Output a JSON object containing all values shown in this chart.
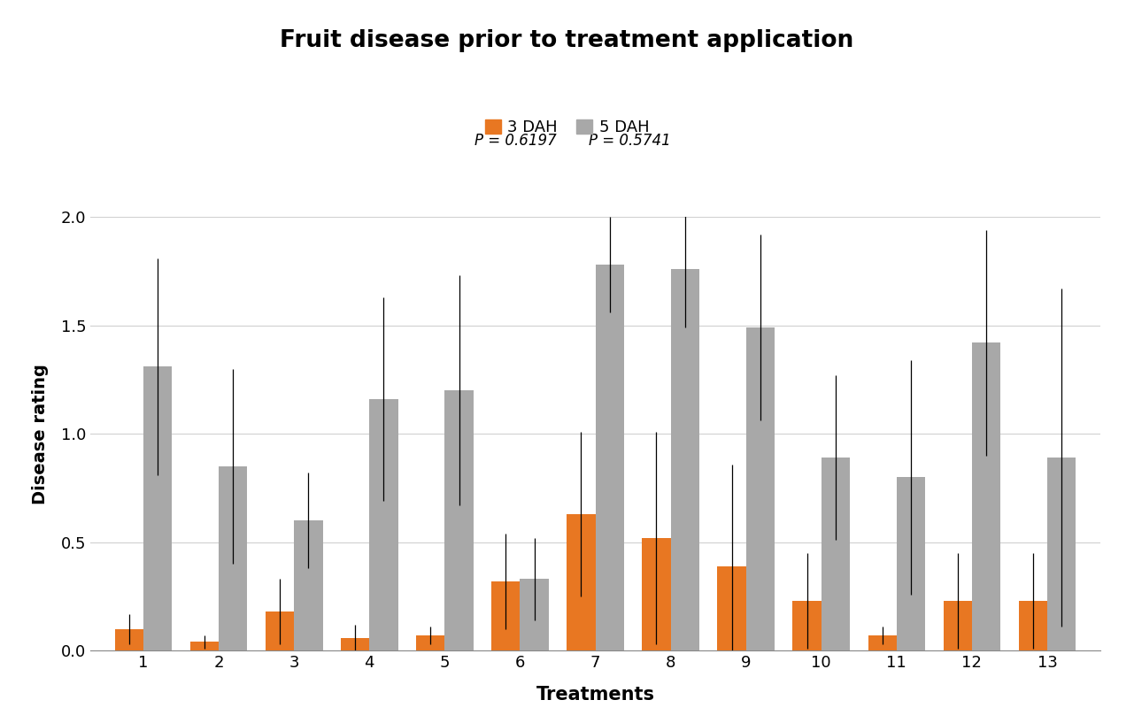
{
  "title": "Fruit disease prior to treatment application",
  "xlabel": "Treatments",
  "ylabel": "Disease rating",
  "categories": [
    1,
    2,
    3,
    4,
    5,
    6,
    7,
    8,
    9,
    10,
    11,
    12,
    13
  ],
  "bar3_values": [
    0.1,
    0.04,
    0.18,
    0.06,
    0.07,
    0.32,
    0.63,
    0.52,
    0.39,
    0.23,
    0.07,
    0.23,
    0.23
  ],
  "bar5_values": [
    1.31,
    0.85,
    0.6,
    1.16,
    1.2,
    0.33,
    1.78,
    1.76,
    1.49,
    0.89,
    0.8,
    1.42,
    0.89
  ],
  "bar3_errors": [
    0.07,
    0.03,
    0.15,
    0.06,
    0.04,
    0.22,
    0.38,
    0.49,
    0.47,
    0.22,
    0.04,
    0.22,
    0.22
  ],
  "bar5_errors": [
    0.5,
    0.45,
    0.22,
    0.47,
    0.53,
    0.19,
    0.22,
    0.27,
    0.43,
    0.38,
    0.54,
    0.52,
    0.78
  ],
  "color_3dah": "#E87722",
  "color_5dah": "#A8A8A8",
  "legend_label_3": "3 DAH",
  "legend_label_5": "5 DAH",
  "p_value_3": "P = 0.6197",
  "p_value_5": "P = 0.5741",
  "ylim": [
    0.0,
    2.0
  ],
  "yticks": [
    0.0,
    0.5,
    1.0,
    1.5,
    2.0
  ],
  "bar_width": 0.38,
  "background_color": "#ffffff",
  "grid_color": "#d0d0d0"
}
